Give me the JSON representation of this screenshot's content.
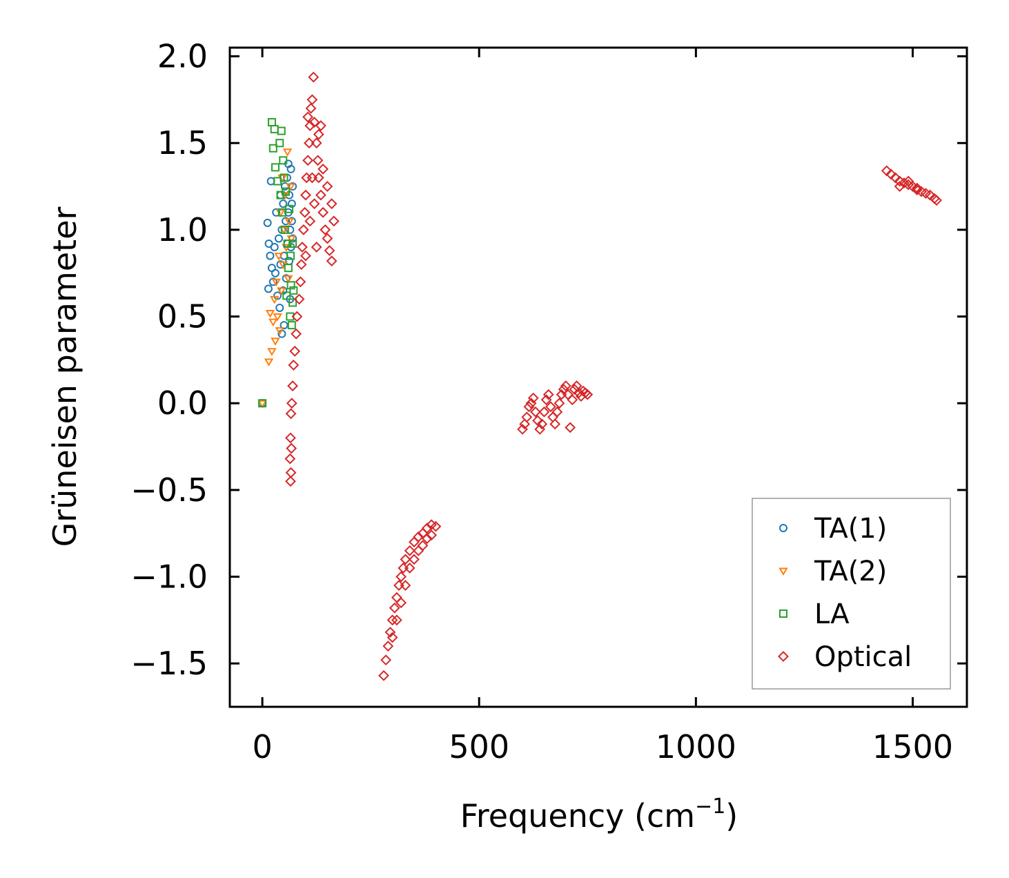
{
  "chart_data": {
    "type": "scatter",
    "xlabel": "Frequency (cm",
    "xlabel_sup": "−1",
    "xlabel_close": ")",
    "ylabel": "Grüneisen parameter",
    "xlim": [
      -75,
      1625
    ],
    "ylim": [
      -1.75,
      2.05
    ],
    "xticks": [
      0,
      500,
      1000,
      1500
    ],
    "xtick_labels": [
      "0",
      "500",
      "1000",
      "1500"
    ],
    "yticks": [
      2.0,
      1.5,
      1.0,
      0.5,
      0.0,
      -0.5,
      -1.0,
      -1.5
    ],
    "ytick_labels": [
      "2.0",
      "1.5",
      "1.0",
      "0.5",
      "0.0",
      "−0.5",
      "−1.0",
      "−1.5"
    ],
    "legend_position": "lower-right",
    "series": [
      {
        "name": "TA(1)",
        "marker": "circle",
        "color": "#1f77b4",
        "points": [
          [
            0,
            0
          ],
          [
            12,
            1.04
          ],
          [
            15,
            0.92
          ],
          [
            18,
            0.85
          ],
          [
            20,
            1.28
          ],
          [
            22,
            0.78
          ],
          [
            14,
            0.66
          ],
          [
            25,
            0.7
          ],
          [
            28,
            0.9
          ],
          [
            30,
            0.75
          ],
          [
            32,
            1.1
          ],
          [
            35,
            0.62
          ],
          [
            38,
            0.95
          ],
          [
            40,
            0.55
          ],
          [
            42,
            0.8
          ],
          [
            42,
            1.2
          ],
          [
            45,
            0.4
          ],
          [
            45,
            1.0
          ],
          [
            48,
            1.15
          ],
          [
            48,
            0.65
          ],
          [
            50,
            0.45
          ],
          [
            50,
            0.85
          ],
          [
            52,
            1.25
          ],
          [
            54,
            1.05
          ],
          [
            55,
            0.72
          ],
          [
            57,
            1.3
          ],
          [
            58,
            0.92
          ],
          [
            60,
            1.38
          ],
          [
            60,
            1.1
          ],
          [
            62,
            0.82
          ],
          [
            62,
            1.2
          ],
          [
            64,
            0.6
          ],
          [
            64,
            1.0
          ],
          [
            66,
            1.35
          ],
          [
            66,
            0.9
          ],
          [
            68,
            1.15
          ],
          [
            68,
            1.05
          ],
          [
            70,
            1.25
          ],
          [
            70,
            0.95
          ]
        ]
      },
      {
        "name": "TA(2)",
        "marker": "triangle-down",
        "color": "#ff7f0e",
        "points": [
          [
            0,
            0
          ],
          [
            15,
            0.24
          ],
          [
            18,
            0.52
          ],
          [
            22,
            0.3
          ],
          [
            25,
            0.47
          ],
          [
            28,
            0.6
          ],
          [
            30,
            0.36
          ],
          [
            32,
            0.7
          ],
          [
            35,
            0.5
          ],
          [
            38,
            0.85
          ],
          [
            40,
            0.42
          ],
          [
            42,
            1.1
          ],
          [
            44,
            0.65
          ],
          [
            46,
            1.3
          ],
          [
            48,
            0.8
          ],
          [
            50,
            1.0
          ],
          [
            52,
            1.2
          ],
          [
            55,
            0.9
          ],
          [
            58,
            1.45
          ],
          [
            60,
            0.72
          ],
          [
            62,
            1.05
          ],
          [
            65,
            1.25
          ],
          [
            67,
            0.95
          ]
        ]
      },
      {
        "name": "LA",
        "marker": "square",
        "color": "#2ca02c",
        "points": [
          [
            0,
            0
          ],
          [
            22,
            1.62
          ],
          [
            25,
            1.47
          ],
          [
            28,
            1.58
          ],
          [
            30,
            1.36
          ],
          [
            35,
            1.28
          ],
          [
            40,
            1.5
          ],
          [
            42,
            1.2
          ],
          [
            44,
            1.57
          ],
          [
            46,
            1.1
          ],
          [
            48,
            1.4
          ],
          [
            50,
            1.3
          ],
          [
            52,
            1.0
          ],
          [
            54,
            1.22
          ],
          [
            56,
            0.62
          ],
          [
            58,
            0.92
          ],
          [
            60,
            0.78
          ],
          [
            62,
            1.12
          ],
          [
            64,
            0.5
          ],
          [
            65,
            0.85
          ],
          [
            66,
            0.68
          ],
          [
            68,
            0.45
          ],
          [
            70,
            0.58
          ],
          [
            70,
            0.92
          ],
          [
            72,
            0.65
          ]
        ]
      },
      {
        "name": "Optical",
        "marker": "diamond",
        "color": "#d62728",
        "points": [
          [
            65,
            -0.45
          ],
          [
            66,
            -0.4
          ],
          [
            64,
            -0.32
          ],
          [
            67,
            -0.26
          ],
          [
            65,
            -0.2
          ],
          [
            66,
            -0.06
          ],
          [
            68,
            0.0
          ],
          [
            70,
            0.1
          ],
          [
            72,
            0.22
          ],
          [
            75,
            0.3
          ],
          [
            78,
            0.4
          ],
          [
            80,
            0.5
          ],
          [
            85,
            0.6
          ],
          [
            88,
            0.7
          ],
          [
            90,
            0.8
          ],
          [
            92,
            0.9
          ],
          [
            95,
            1.0
          ],
          [
            98,
            1.1
          ],
          [
            100,
            1.2
          ],
          [
            102,
            1.3
          ],
          [
            105,
            1.4
          ],
          [
            108,
            1.5
          ],
          [
            110,
            1.6
          ],
          [
            112,
            1.7
          ],
          [
            115,
            1.75
          ],
          [
            118,
            1.88
          ],
          [
            120,
            1.62
          ],
          [
            125,
            1.5
          ],
          [
            128,
            1.4
          ],
          [
            130,
            1.3
          ],
          [
            135,
            1.2
          ],
          [
            140,
            1.1
          ],
          [
            145,
            1.0
          ],
          [
            150,
            0.95
          ],
          [
            155,
            0.88
          ],
          [
            160,
            0.82
          ],
          [
            100,
            0.85
          ],
          [
            110,
            1.05
          ],
          [
            120,
            1.15
          ],
          [
            130,
            1.55
          ],
          [
            140,
            1.35
          ],
          [
            150,
            1.25
          ],
          [
            160,
            1.15
          ],
          [
            165,
            1.05
          ],
          [
            105,
            1.65
          ],
          [
            115,
            1.3
          ],
          [
            125,
            0.9
          ],
          [
            135,
            1.6
          ],
          [
            280,
            -1.57
          ],
          [
            285,
            -1.48
          ],
          [
            290,
            -1.4
          ],
          [
            295,
            -1.32
          ],
          [
            300,
            -1.25
          ],
          [
            305,
            -1.18
          ],
          [
            310,
            -1.12
          ],
          [
            315,
            -1.05
          ],
          [
            320,
            -1.0
          ],
          [
            325,
            -0.95
          ],
          [
            330,
            -0.9
          ],
          [
            340,
            -0.85
          ],
          [
            350,
            -0.8
          ],
          [
            360,
            -0.77
          ],
          [
            370,
            -0.75
          ],
          [
            380,
            -0.72
          ],
          [
            390,
            -0.7
          ],
          [
            400,
            -0.71
          ],
          [
            300,
            -1.35
          ],
          [
            310,
            -1.25
          ],
          [
            320,
            -1.15
          ],
          [
            330,
            -1.05
          ],
          [
            340,
            -0.95
          ],
          [
            350,
            -0.9
          ],
          [
            360,
            -0.85
          ],
          [
            370,
            -0.82
          ],
          [
            380,
            -0.78
          ],
          [
            390,
            -0.76
          ],
          [
            600,
            -0.15
          ],
          [
            605,
            -0.12
          ],
          [
            610,
            -0.08
          ],
          [
            615,
            -0.02
          ],
          [
            620,
            0.0
          ],
          [
            625,
            0.03
          ],
          [
            630,
            -0.05
          ],
          [
            635,
            -0.1
          ],
          [
            640,
            -0.15
          ],
          [
            645,
            -0.12
          ],
          [
            650,
            -0.05
          ],
          [
            655,
            0.02
          ],
          [
            660,
            0.05
          ],
          [
            665,
            -0.02
          ],
          [
            670,
            -0.08
          ],
          [
            675,
            -0.12
          ],
          [
            680,
            -0.05
          ],
          [
            685,
            0.0
          ],
          [
            690,
            0.05
          ],
          [
            695,
            0.08
          ],
          [
            700,
            0.1
          ],
          [
            705,
            0.05
          ],
          [
            710,
            -0.14
          ],
          [
            715,
            0.02
          ],
          [
            720,
            0.08
          ],
          [
            725,
            0.1
          ],
          [
            730,
            0.06
          ],
          [
            735,
            0.04
          ],
          [
            740,
            0.07
          ],
          [
            745,
            0.06
          ],
          [
            750,
            0.05
          ],
          [
            1440,
            1.34
          ],
          [
            1450,
            1.32
          ],
          [
            1460,
            1.3
          ],
          [
            1470,
            1.28
          ],
          [
            1480,
            1.27
          ],
          [
            1490,
            1.26
          ],
          [
            1500,
            1.25
          ],
          [
            1510,
            1.24
          ],
          [
            1520,
            1.22
          ],
          [
            1530,
            1.21
          ],
          [
            1540,
            1.2
          ],
          [
            1550,
            1.18
          ],
          [
            1555,
            1.17
          ],
          [
            1470,
            1.25
          ],
          [
            1490,
            1.28
          ],
          [
            1510,
            1.23
          ]
        ]
      }
    ]
  }
}
